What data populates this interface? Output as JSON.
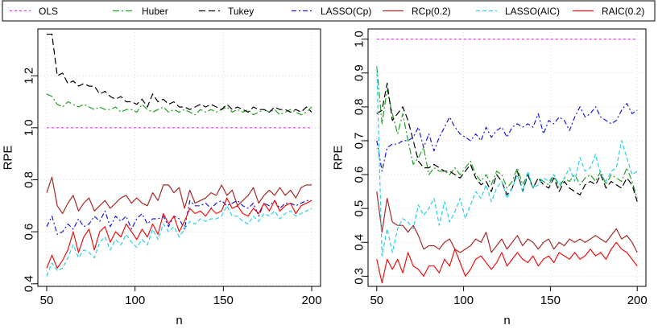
{
  "legend": {
    "items": [
      {
        "label": "OLS",
        "color": "#e040e0",
        "dash": "3,3"
      },
      {
        "label": "Huber",
        "color": "#22a022",
        "dash": "8,3,2,3"
      },
      {
        "label": "Tukey",
        "color": "#000000",
        "dash": "8,4"
      },
      {
        "label": "LASSO(Cp)",
        "color": "#1a1ad8",
        "dash": "6,3,2,3"
      },
      {
        "label": "RCp(0.2)",
        "color": "#a52a2a",
        "dash": ""
      },
      {
        "label": "LASSO(AIC)",
        "color": "#28d0e8",
        "dash": "5,3"
      },
      {
        "label": "RAIC(0.2)",
        "color": "#ee1111",
        "dash": ""
      }
    ]
  },
  "chart_data": [
    {
      "type": "line",
      "xlabel": "n",
      "ylabel": "RPE",
      "xlim": [
        45,
        205
      ],
      "ylim": [
        0.39,
        1.38
      ],
      "xticks": [
        50,
        100,
        150,
        200
      ],
      "yticks": [
        0.4,
        0.6,
        0.8,
        1.0,
        1.2
      ],
      "ytick_labels": [
        "0.4",
        "0.6",
        "0.8",
        "1.0",
        "1.2"
      ],
      "grid": true,
      "x": [
        50,
        53,
        56,
        59,
        62,
        65,
        68,
        71,
        74,
        77,
        80,
        83,
        86,
        89,
        92,
        95,
        98,
        101,
        104,
        107,
        110,
        113,
        116,
        119,
        122,
        125,
        128,
        131,
        134,
        137,
        140,
        143,
        146,
        149,
        152,
        155,
        158,
        161,
        164,
        167,
        170,
        173,
        176,
        179,
        182,
        185,
        188,
        191,
        194,
        197,
        200
      ],
      "series": [
        {
          "name": "OLS",
          "values": [
            1.0,
            1.0,
            1.0,
            1.0,
            1.0,
            1.0,
            1.0,
            1.0,
            1.0,
            1.0,
            1.0,
            1.0,
            1.0,
            1.0,
            1.0,
            1.0,
            1.0,
            1.0,
            1.0,
            1.0,
            1.0,
            1.0,
            1.0,
            1.0,
            1.0,
            1.0,
            1.0,
            1.0,
            1.0,
            1.0,
            1.0,
            1.0,
            1.0,
            1.0,
            1.0,
            1.0,
            1.0,
            1.0,
            1.0,
            1.0,
            1.0,
            1.0,
            1.0,
            1.0,
            1.0,
            1.0,
            1.0,
            1.0,
            1.0,
            1.0,
            1.0
          ]
        },
        {
          "name": "Huber",
          "values": [
            1.13,
            1.12,
            1.09,
            1.08,
            1.1,
            1.09,
            1.08,
            1.09,
            1.08,
            1.07,
            1.08,
            1.07,
            1.07,
            1.08,
            1.06,
            1.07,
            1.07,
            1.06,
            1.09,
            1.07,
            1.06,
            1.07,
            1.08,
            1.06,
            1.07,
            1.06,
            1.07,
            1.06,
            1.05,
            1.07,
            1.06,
            1.07,
            1.06,
            1.07,
            1.08,
            1.06,
            1.07,
            1.06,
            1.07,
            1.05,
            1.06,
            1.07,
            1.06,
            1.07,
            1.05,
            1.06,
            1.07,
            1.06,
            1.05,
            1.06,
            1.08
          ]
        },
        {
          "name": "Tukey",
          "values": [
            1.36,
            1.36,
            1.2,
            1.21,
            1.17,
            1.18,
            1.16,
            1.17,
            1.16,
            1.16,
            1.13,
            1.14,
            1.12,
            1.11,
            1.12,
            1.1,
            1.1,
            1.09,
            1.11,
            1.08,
            1.13,
            1.1,
            1.11,
            1.09,
            1.1,
            1.08,
            1.08,
            1.07,
            1.08,
            1.09,
            1.08,
            1.09,
            1.08,
            1.07,
            1.09,
            1.07,
            1.08,
            1.07,
            1.06,
            1.08,
            1.07,
            1.07,
            1.06,
            1.08,
            1.07,
            1.07,
            1.06,
            1.07,
            1.06,
            1.08,
            1.06
          ]
        },
        {
          "name": "LASSO(Cp)",
          "values": [
            0.62,
            0.66,
            0.59,
            0.6,
            0.63,
            0.61,
            0.65,
            0.62,
            0.63,
            0.66,
            0.64,
            0.68,
            0.62,
            0.66,
            0.64,
            0.66,
            0.61,
            0.65,
            0.67,
            0.63,
            0.65,
            0.65,
            0.66,
            0.62,
            0.66,
            0.65,
            0.61,
            0.72,
            0.7,
            0.7,
            0.71,
            0.69,
            0.71,
            0.72,
            0.7,
            0.71,
            0.72,
            0.7,
            0.69,
            0.71,
            0.66,
            0.71,
            0.7,
            0.72,
            0.69,
            0.71,
            0.71,
            0.7,
            0.71,
            0.72,
            0.72
          ]
        },
        {
          "name": "RCp(0.2)",
          "values": [
            0.75,
            0.81,
            0.7,
            0.67,
            0.71,
            0.74,
            0.68,
            0.71,
            0.73,
            0.68,
            0.7,
            0.72,
            0.69,
            0.71,
            0.73,
            0.74,
            0.71,
            0.73,
            0.71,
            0.7,
            0.75,
            0.72,
            0.78,
            0.78,
            0.75,
            0.77,
            0.69,
            0.76,
            0.71,
            0.72,
            0.73,
            0.75,
            0.74,
            0.78,
            0.74,
            0.76,
            0.7,
            0.72,
            0.74,
            0.77,
            0.71,
            0.74,
            0.76,
            0.74,
            0.77,
            0.74,
            0.76,
            0.73,
            0.77,
            0.78,
            0.78
          ]
        },
        {
          "name": "LASSO(AIC)",
          "values": [
            0.43,
            0.48,
            0.45,
            0.46,
            0.5,
            0.55,
            0.5,
            0.53,
            0.52,
            0.5,
            0.56,
            0.58,
            0.53,
            0.57,
            0.55,
            0.59,
            0.56,
            0.54,
            0.57,
            0.55,
            0.61,
            0.57,
            0.63,
            0.6,
            0.62,
            0.58,
            0.61,
            0.64,
            0.63,
            0.65,
            0.64,
            0.65,
            0.65,
            0.66,
            0.7,
            0.66,
            0.66,
            0.64,
            0.63,
            0.66,
            0.64,
            0.67,
            0.66,
            0.68,
            0.65,
            0.67,
            0.68,
            0.66,
            0.67,
            0.68,
            0.69
          ]
        },
        {
          "name": "RAIC(0.2)",
          "values": [
            0.46,
            0.51,
            0.46,
            0.49,
            0.53,
            0.6,
            0.52,
            0.58,
            0.61,
            0.53,
            0.6,
            0.62,
            0.56,
            0.6,
            0.58,
            0.63,
            0.6,
            0.57,
            0.61,
            0.58,
            0.63,
            0.59,
            0.67,
            0.63,
            0.66,
            0.6,
            0.64,
            0.69,
            0.67,
            0.68,
            0.66,
            0.69,
            0.67,
            0.68,
            0.73,
            0.69,
            0.7,
            0.67,
            0.66,
            0.69,
            0.67,
            0.71,
            0.68,
            0.72,
            0.68,
            0.7,
            0.71,
            0.67,
            0.7,
            0.71,
            0.72
          ]
        }
      ]
    },
    {
      "type": "line",
      "xlabel": "n",
      "ylabel": "RPE",
      "xlim": [
        45,
        205
      ],
      "ylim": [
        0.27,
        1.03
      ],
      "xticks": [
        50,
        100,
        150,
        200
      ],
      "yticks": [
        0.3,
        0.4,
        0.5,
        0.6,
        0.7,
        0.8,
        0.9,
        1.0
      ],
      "ytick_labels": [
        "0.3",
        "0.4",
        "0.5",
        "0.6",
        "0.7",
        "0.8",
        "0.9",
        "1.0"
      ],
      "grid": true,
      "x": [
        50,
        53,
        56,
        59,
        62,
        65,
        68,
        71,
        74,
        77,
        80,
        83,
        86,
        89,
        92,
        95,
        98,
        101,
        104,
        107,
        110,
        113,
        116,
        119,
        122,
        125,
        128,
        131,
        134,
        137,
        140,
        143,
        146,
        149,
        152,
        155,
        158,
        161,
        164,
        167,
        170,
        173,
        176,
        179,
        182,
        185,
        188,
        191,
        194,
        197,
        200
      ],
      "series": [
        {
          "name": "OLS",
          "values": [
            1.0,
            1.0,
            1.0,
            1.0,
            1.0,
            1.0,
            1.0,
            1.0,
            1.0,
            1.0,
            1.0,
            1.0,
            1.0,
            1.0,
            1.0,
            1.0,
            1.0,
            1.0,
            1.0,
            1.0,
            1.0,
            1.0,
            1.0,
            1.0,
            1.0,
            1.0,
            1.0,
            1.0,
            1.0,
            1.0,
            1.0,
            1.0,
            1.0,
            1.0,
            1.0,
            1.0,
            1.0,
            1.0,
            1.0,
            1.0,
            1.0,
            1.0,
            1.0,
            1.0,
            1.0,
            1.0,
            1.0,
            1.0,
            1.0,
            1.0,
            1.0
          ]
        },
        {
          "name": "Huber",
          "values": [
            0.92,
            0.75,
            0.85,
            0.78,
            0.72,
            0.78,
            0.7,
            0.63,
            0.65,
            0.68,
            0.6,
            0.62,
            0.61,
            0.61,
            0.6,
            0.62,
            0.6,
            0.62,
            0.64,
            0.6,
            0.58,
            0.6,
            0.57,
            0.61,
            0.6,
            0.56,
            0.58,
            0.62,
            0.57,
            0.6,
            0.56,
            0.59,
            0.58,
            0.57,
            0.6,
            0.56,
            0.59,
            0.58,
            0.6,
            0.57,
            0.59,
            0.6,
            0.58,
            0.61,
            0.57,
            0.6,
            0.59,
            0.58,
            0.62,
            0.58,
            0.53
          ]
        },
        {
          "name": "Tukey",
          "values": [
            0.78,
            0.79,
            0.87,
            0.76,
            0.78,
            0.8,
            0.76,
            0.7,
            0.64,
            0.62,
            0.62,
            0.63,
            0.62,
            0.61,
            0.61,
            0.6,
            0.59,
            0.61,
            0.63,
            0.59,
            0.57,
            0.58,
            0.55,
            0.6,
            0.58,
            0.54,
            0.56,
            0.61,
            0.55,
            0.6,
            0.56,
            0.59,
            0.57,
            0.56,
            0.59,
            0.55,
            0.58,
            0.56,
            0.55,
            0.54,
            0.57,
            0.58,
            0.57,
            0.6,
            0.56,
            0.58,
            0.57,
            0.56,
            0.59,
            0.57,
            0.52
          ]
        },
        {
          "name": "LASSO(Cp)",
          "values": [
            0.7,
            0.61,
            0.68,
            0.69,
            0.69,
            0.7,
            0.7,
            0.71,
            0.74,
            0.68,
            0.72,
            0.67,
            0.71,
            0.74,
            0.77,
            0.74,
            0.72,
            0.71,
            0.7,
            0.72,
            0.7,
            0.74,
            0.71,
            0.73,
            0.74,
            0.71,
            0.74,
            0.75,
            0.74,
            0.75,
            0.74,
            0.78,
            0.72,
            0.76,
            0.75,
            0.77,
            0.76,
            0.73,
            0.77,
            0.8,
            0.77,
            0.78,
            0.8,
            0.77,
            0.76,
            0.75,
            0.76,
            0.79,
            0.81,
            0.78,
            0.79
          ]
        },
        {
          "name": "RCp(0.2)",
          "values": [
            0.55,
            0.43,
            0.53,
            0.46,
            0.45,
            0.45,
            0.43,
            0.45,
            0.42,
            0.38,
            0.39,
            0.39,
            0.38,
            0.4,
            0.41,
            0.38,
            0.37,
            0.38,
            0.39,
            0.41,
            0.4,
            0.43,
            0.37,
            0.39,
            0.41,
            0.38,
            0.4,
            0.42,
            0.39,
            0.41,
            0.4,
            0.38,
            0.4,
            0.41,
            0.38,
            0.4,
            0.39,
            0.41,
            0.4,
            0.41,
            0.4,
            0.41,
            0.42,
            0.41,
            0.4,
            0.42,
            0.44,
            0.41,
            0.42,
            0.4,
            0.37
          ]
        },
        {
          "name": "LASSO(AIC)",
          "values": [
            0.92,
            0.36,
            0.44,
            0.37,
            0.44,
            0.47,
            0.46,
            0.44,
            0.51,
            0.48,
            0.5,
            0.53,
            0.45,
            0.52,
            0.46,
            0.49,
            0.53,
            0.47,
            0.51,
            0.55,
            0.53,
            0.57,
            0.52,
            0.56,
            0.58,
            0.53,
            0.56,
            0.6,
            0.55,
            0.61,
            0.56,
            0.57,
            0.59,
            0.58,
            0.6,
            0.57,
            0.59,
            0.62,
            0.58,
            0.65,
            0.61,
            0.62,
            0.66,
            0.6,
            0.58,
            0.61,
            0.62,
            0.7,
            0.65,
            0.6,
            0.61
          ]
        },
        {
          "name": "RAIC(0.2)",
          "values": [
            0.35,
            0.28,
            0.35,
            0.32,
            0.35,
            0.31,
            0.37,
            0.33,
            0.32,
            0.3,
            0.33,
            0.33,
            0.31,
            0.35,
            0.33,
            0.38,
            0.34,
            0.3,
            0.32,
            0.35,
            0.36,
            0.34,
            0.32,
            0.34,
            0.37,
            0.33,
            0.35,
            0.37,
            0.35,
            0.34,
            0.36,
            0.33,
            0.35,
            0.36,
            0.34,
            0.37,
            0.36,
            0.35,
            0.37,
            0.35,
            0.36,
            0.38,
            0.36,
            0.37,
            0.35,
            0.38,
            0.4,
            0.38,
            0.37,
            0.35,
            0.33
          ]
        }
      ]
    }
  ]
}
